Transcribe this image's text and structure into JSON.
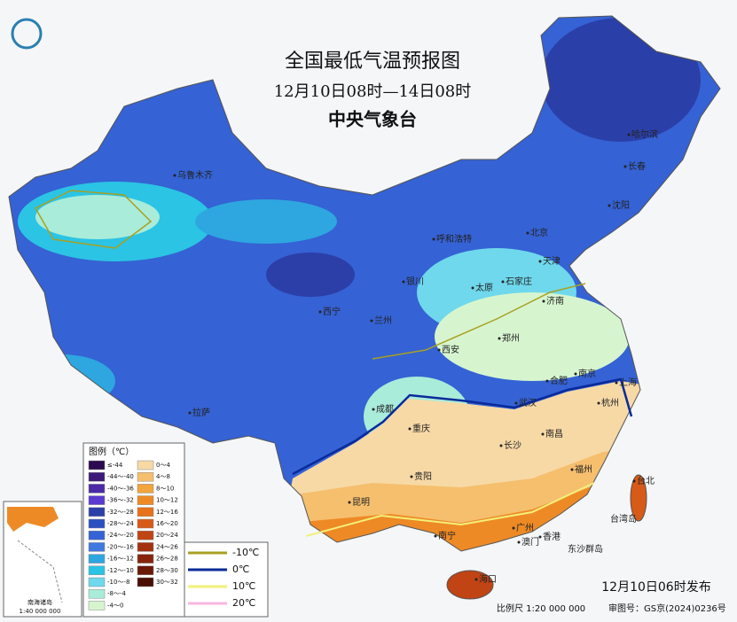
{
  "header": {
    "title": "全国最低气温预报图",
    "period": "12月10日08时—14日08时",
    "issuer": "中央气象台"
  },
  "cities": [
    "乌鲁木齐",
    "哈尔滨",
    "长春",
    "沈阳",
    "北京",
    "天津",
    "呼和浩特",
    "石家庄",
    "太原",
    "银川",
    "济南",
    "西宁",
    "兰州",
    "郑州",
    "西安",
    "合肥",
    "南京",
    "上海",
    "杭州",
    "武汉",
    "成都",
    "重庆",
    "长沙",
    "南昌",
    "拉萨",
    "贵阳",
    "福州",
    "台北",
    "昆明",
    "南宁",
    "广州",
    "澳门",
    "香港",
    "海口"
  ],
  "places": [
    "台湾岛",
    "东沙群岛"
  ],
  "legend": {
    "title": "图例（℃）",
    "items": [
      {
        "label": "≤-44",
        "color": "#2b0a4f"
      },
      {
        "label": "-44～-40",
        "color": "#3d1a7a"
      },
      {
        "label": "-40～-36",
        "color": "#4b2aa8"
      },
      {
        "label": "-36～-32",
        "color": "#5a3ad0"
      },
      {
        "label": "-32～-28",
        "color": "#2c3fa8"
      },
      {
        "label": "-28～-24",
        "color": "#2b50c0"
      },
      {
        "label": "-24～-20",
        "color": "#3562d4"
      },
      {
        "label": "-20～-16",
        "color": "#3f78e0"
      },
      {
        "label": "-16～-12",
        "color": "#2ea6e0"
      },
      {
        "label": "-12～-10",
        "color": "#2bc4e4"
      },
      {
        "label": "-10～-8",
        "color": "#6fd8ec"
      },
      {
        "label": "-8～-4",
        "color": "#a9ecd9"
      },
      {
        "label": "-4～0",
        "color": "#d6f5cf"
      },
      {
        "label": "0～4",
        "color": "#f7d9a6"
      },
      {
        "label": "4～8",
        "color": "#f5bf6e"
      },
      {
        "label": "8～10",
        "color": "#f2a43d"
      },
      {
        "label": "10～12",
        "color": "#ee8a25"
      },
      {
        "label": "12～16",
        "color": "#e8711c"
      },
      {
        "label": "16～20",
        "color": "#d85a18"
      },
      {
        "label": "20～24",
        "color": "#c04414"
      },
      {
        "label": "24～26",
        "color": "#a33210"
      },
      {
        "label": "26～28",
        "color": "#86240c"
      },
      {
        "label": "28～30",
        "color": "#6a1808"
      },
      {
        "label": "30～32",
        "color": "#4a0e04"
      }
    ]
  },
  "isotherms": [
    {
      "label": "-10℃",
      "color": "#a8a020"
    },
    {
      "label": "0℃",
      "color": "#0a2a9a"
    },
    {
      "label": "10℃",
      "color": "#f2f07a"
    },
    {
      "label": "20℃",
      "color": "#f7b6e0"
    }
  ],
  "inset": {
    "title": "南海诸岛",
    "scale": "1:40 000 000"
  },
  "footer": {
    "issued": "12月10日06时发布",
    "scale": "比例尺  1:20 000 000",
    "review": "审图号：GS京(2024)0236号"
  }
}
